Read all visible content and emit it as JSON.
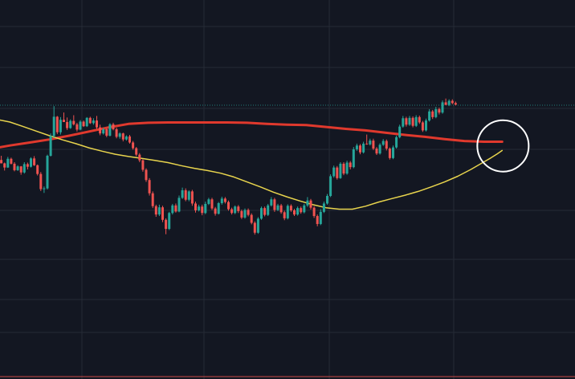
{
  "colors": {
    "background": "#131722",
    "grid": "#262b36",
    "up": "#26a69a",
    "down": "#ef5350",
    "ma_slow": "#e0392d",
    "ma_fast": "#e8d44d",
    "last_price_line": "#26a69a",
    "highlight_circle": "#ffffff"
  },
  "chart_data": {
    "type": "candlestick",
    "grid": true,
    "y_range": [
      0,
      100
    ],
    "x_count": 160,
    "last_price_value": 72.3,
    "candles": [
      [
        58.0,
        58.5,
        56.8,
        57.8
      ],
      [
        57.8,
        58.9,
        56.9,
        56.9
      ],
      [
        56.9,
        57.1,
        55.0,
        55.8
      ],
      [
        55.8,
        58.6,
        55.7,
        58.1
      ],
      [
        58.1,
        58.4,
        56.6,
        56.8
      ],
      [
        56.8,
        57.2,
        54.8,
        55.1
      ],
      [
        55.1,
        56.4,
        54.9,
        56.1
      ],
      [
        56.1,
        56.2,
        53.9,
        54.5
      ],
      [
        54.5,
        57.2,
        54.2,
        56.7
      ],
      [
        56.7,
        57.1,
        55.3,
        56.0
      ],
      [
        56.0,
        58.5,
        55.8,
        58.2
      ],
      [
        58.2,
        58.8,
        56.2,
        56.4
      ],
      [
        56.4,
        56.6,
        53.7,
        54.1
      ],
      [
        54.1,
        54.6,
        49.6,
        50.1
      ],
      [
        50.1,
        50.8,
        49.1,
        50.3
      ],
      [
        50.3,
        59.2,
        50.0,
        58.9
      ],
      [
        58.9,
        64.8,
        58.7,
        64.1
      ],
      [
        64.1,
        72.0,
        63.6,
        69.2
      ],
      [
        69.2,
        69.4,
        64.6,
        65.1
      ],
      [
        65.1,
        69.1,
        64.5,
        68.4
      ],
      [
        68.4,
        70.3,
        67.9,
        67.8
      ],
      [
        67.8,
        69.0,
        65.7,
        66.2
      ],
      [
        66.2,
        68.5,
        66.0,
        68.1
      ],
      [
        68.1,
        69.6,
        66.9,
        67.2
      ],
      [
        67.2,
        67.6,
        65.3,
        65.8
      ],
      [
        65.8,
        68.3,
        65.6,
        67.9
      ],
      [
        67.9,
        68.2,
        66.5,
        66.7
      ],
      [
        66.7,
        69.1,
        66.5,
        68.9
      ],
      [
        68.9,
        69.2,
        67.3,
        67.5
      ],
      [
        67.5,
        68.8,
        67.1,
        68.2
      ],
      [
        68.2,
        69.4,
        66.0,
        66.4
      ],
      [
        66.4,
        67.1,
        64.3,
        64.8
      ],
      [
        64.8,
        66.3,
        64.5,
        65.9
      ],
      [
        65.9,
        66.2,
        63.8,
        64.2
      ],
      [
        64.2,
        67.5,
        64.0,
        67.2
      ],
      [
        67.2,
        67.6,
        65.6,
        65.9
      ],
      [
        65.9,
        66.3,
        63.5,
        63.9
      ],
      [
        63.9,
        65.1,
        63.4,
        64.8
      ],
      [
        64.8,
        65.0,
        62.7,
        63.2
      ],
      [
        63.2,
        64.3,
        62.9,
        64.0
      ],
      [
        64.0,
        64.4,
        62.1,
        62.4
      ],
      [
        62.4,
        62.8,
        60.5,
        60.9
      ],
      [
        60.9,
        61.2,
        58.8,
        59.2
      ],
      [
        59.2,
        59.6,
        57.2,
        57.7
      ],
      [
        57.7,
        58.0,
        54.7,
        55.2
      ],
      [
        55.2,
        55.6,
        52.0,
        52.5
      ],
      [
        52.5,
        53.0,
        48.4,
        49.0
      ],
      [
        49.0,
        49.5,
        45.1,
        45.6
      ],
      [
        45.6,
        46.0,
        42.8,
        43.4
      ],
      [
        43.4,
        46.0,
        43.0,
        45.3
      ],
      [
        45.3,
        45.7,
        41.4,
        42.0
      ],
      [
        42.0,
        42.4,
        38.2,
        39.6
      ],
      [
        39.6,
        44.1,
        39.3,
        43.8
      ],
      [
        43.8,
        46.2,
        43.4,
        45.8
      ],
      [
        45.8,
        46.3,
        43.9,
        44.2
      ],
      [
        44.2,
        48.4,
        44.0,
        47.8
      ],
      [
        47.8,
        50.5,
        47.5,
        49.8
      ],
      [
        49.8,
        50.3,
        46.9,
        47.3
      ],
      [
        47.3,
        49.8,
        46.9,
        49.5
      ],
      [
        49.5,
        49.9,
        45.7,
        46.3
      ],
      [
        46.3,
        46.8,
        43.9,
        44.5
      ],
      [
        44.5,
        46.0,
        44.2,
        45.5
      ],
      [
        45.5,
        46.0,
        43.2,
        43.8
      ],
      [
        43.8,
        46.8,
        43.5,
        46.2
      ],
      [
        46.2,
        47.8,
        45.9,
        47.4
      ],
      [
        47.4,
        47.8,
        44.6,
        45.0
      ],
      [
        45.0,
        45.4,
        43.1,
        43.6
      ],
      [
        43.6,
        46.7,
        43.4,
        46.4
      ],
      [
        46.4,
        48.1,
        46.0,
        47.6
      ],
      [
        47.6,
        48.0,
        46.3,
        46.7
      ],
      [
        46.7,
        47.1,
        44.4,
        44.8
      ],
      [
        44.8,
        45.2,
        43.4,
        43.8
      ],
      [
        43.8,
        45.8,
        43.5,
        45.5
      ],
      [
        45.5,
        45.9,
        43.8,
        44.3
      ],
      [
        44.3,
        44.7,
        42.2,
        42.6
      ],
      [
        42.6,
        45.0,
        42.3,
        44.6
      ],
      [
        44.6,
        45.0,
        42.9,
        43.3
      ],
      [
        43.3,
        43.7,
        40.8,
        41.2
      ],
      [
        41.2,
        41.6,
        38.1,
        38.6
      ],
      [
        38.6,
        42.7,
        38.3,
        42.3
      ],
      [
        42.3,
        45.5,
        42.0,
        45.1
      ],
      [
        45.1,
        45.5,
        42.9,
        43.3
      ],
      [
        43.3,
        46.2,
        43.0,
        45.8
      ],
      [
        45.8,
        48.0,
        45.5,
        47.4
      ],
      [
        47.4,
        47.8,
        44.1,
        44.6
      ],
      [
        44.6,
        46.2,
        44.3,
        45.8
      ],
      [
        45.8,
        46.2,
        43.6,
        44.0
      ],
      [
        44.0,
        44.4,
        41.9,
        42.4
      ],
      [
        42.4,
        46.1,
        42.1,
        45.7
      ],
      [
        45.7,
        46.1,
        44.1,
        44.5
      ],
      [
        44.5,
        44.9,
        43.0,
        43.4
      ],
      [
        43.4,
        45.5,
        43.1,
        45.1
      ],
      [
        45.1,
        45.5,
        43.6,
        44.0
      ],
      [
        44.0,
        46.2,
        43.7,
        45.8
      ],
      [
        45.8,
        48.0,
        45.4,
        47.1
      ],
      [
        47.1,
        47.5,
        44.7,
        45.2
      ],
      [
        45.2,
        45.6,
        42.5,
        43.0
      ],
      [
        43.0,
        43.4,
        40.3,
        40.9
      ],
      [
        40.9,
        44.8,
        40.6,
        44.1
      ],
      [
        44.1,
        46.8,
        43.8,
        46.3
      ],
      [
        46.3,
        48.8,
        46.0,
        48.3
      ],
      [
        48.3,
        54.0,
        48.0,
        53.5
      ],
      [
        53.5,
        56.3,
        53.1,
        55.8
      ],
      [
        55.8,
        56.2,
        52.6,
        53.0
      ],
      [
        53.0,
        57.2,
        52.8,
        56.8
      ],
      [
        56.8,
        57.2,
        53.8,
        54.2
      ],
      [
        54.2,
        57.6,
        53.9,
        57.1
      ],
      [
        57.1,
        57.5,
        55.3,
        55.9
      ],
      [
        55.9,
        61.2,
        55.6,
        60.6
      ],
      [
        60.6,
        62.1,
        60.2,
        61.6
      ],
      [
        61.6,
        62.0,
        59.3,
        59.8
      ],
      [
        59.8,
        62.6,
        59.5,
        62.1
      ],
      [
        62.1,
        64.5,
        61.8,
        61.9
      ],
      [
        61.9,
        63.4,
        61.6,
        62.9
      ],
      [
        62.9,
        63.4,
        60.4,
        60.8
      ],
      [
        60.8,
        61.2,
        59.1,
        59.5
      ],
      [
        59.5,
        62.2,
        59.2,
        61.8
      ],
      [
        61.8,
        63.3,
        61.5,
        62.8
      ],
      [
        62.8,
        63.2,
        60.3,
        60.8
      ],
      [
        60.8,
        61.1,
        57.9,
        58.3
      ],
      [
        58.3,
        61.6,
        58.0,
        61.1
      ],
      [
        61.1,
        64.2,
        60.8,
        63.8
      ],
      [
        63.8,
        67.1,
        63.5,
        66.6
      ],
      [
        66.6,
        69.4,
        66.3,
        68.8
      ],
      [
        68.8,
        69.2,
        66.6,
        67.1
      ],
      [
        67.1,
        69.4,
        66.8,
        68.9
      ],
      [
        68.9,
        69.3,
        66.4,
        66.8
      ],
      [
        66.8,
        69.6,
        66.5,
        69.1
      ],
      [
        69.1,
        69.5,
        67.3,
        67.7
      ],
      [
        67.7,
        68.1,
        65.2,
        65.6
      ],
      [
        65.6,
        68.7,
        65.3,
        68.2
      ],
      [
        68.2,
        71.2,
        67.9,
        70.6
      ],
      [
        70.6,
        71.0,
        68.6,
        69.1
      ],
      [
        69.1,
        71.8,
        68.8,
        71.2
      ],
      [
        71.2,
        71.6,
        69.8,
        70.3
      ],
      [
        70.3,
        73.5,
        70.0,
        73.0
      ],
      [
        73.0,
        74.0,
        72.7,
        72.3
      ],
      [
        72.3,
        73.8,
        72.0,
        73.4
      ],
      [
        73.4,
        73.8,
        72.5,
        72.8
      ],
      [
        72.8,
        73.2,
        72.2,
        72.4
      ]
    ],
    "ma_slow": [
      [
        0,
        61.0
      ],
      [
        4,
        61.6
      ],
      [
        10,
        62.4
      ],
      [
        16,
        63.2
      ],
      [
        22,
        64.2
      ],
      [
        28,
        65.3
      ],
      [
        34,
        66.4
      ],
      [
        40,
        67.3
      ],
      [
        46,
        67.6
      ],
      [
        52,
        67.7
      ],
      [
        58,
        67.7
      ],
      [
        64,
        67.7
      ],
      [
        70,
        67.7
      ],
      [
        76,
        67.6
      ],
      [
        82,
        67.3
      ],
      [
        88,
        67.1
      ],
      [
        94,
        67.0
      ],
      [
        100,
        66.5
      ],
      [
        106,
        66.0
      ],
      [
        112,
        65.6
      ],
      [
        118,
        65.0
      ],
      [
        124,
        64.4
      ],
      [
        130,
        63.9
      ],
      [
        136,
        63.3
      ],
      [
        142,
        62.8
      ],
      [
        148,
        62.6
      ],
      [
        152,
        62.6
      ],
      [
        153.5,
        62.6
      ]
    ],
    "ma_fast": [
      [
        0,
        68.5
      ],
      [
        4,
        67.8
      ],
      [
        8,
        66.6
      ],
      [
        12,
        65.4
      ],
      [
        16,
        64.2
      ],
      [
        20,
        63.1
      ],
      [
        24,
        62.1
      ],
      [
        28,
        61.0
      ],
      [
        32,
        60.1
      ],
      [
        36,
        59.3
      ],
      [
        40,
        58.7
      ],
      [
        44,
        58.2
      ],
      [
        48,
        57.7
      ],
      [
        52,
        57.1
      ],
      [
        56,
        56.3
      ],
      [
        60,
        55.6
      ],
      [
        64,
        55.0
      ],
      [
        68,
        54.3
      ],
      [
        72,
        53.3
      ],
      [
        76,
        52.0
      ],
      [
        80,
        50.7
      ],
      [
        84,
        49.3
      ],
      [
        88,
        48.1
      ],
      [
        92,
        47.0
      ],
      [
        96,
        46.0
      ],
      [
        100,
        45.2
      ],
      [
        104,
        44.8
      ],
      [
        108,
        44.8
      ],
      [
        112,
        45.6
      ],
      [
        116,
        46.7
      ],
      [
        120,
        47.6
      ],
      [
        124,
        48.5
      ],
      [
        128,
        49.5
      ],
      [
        132,
        50.7
      ],
      [
        136,
        52.0
      ],
      [
        140,
        53.5
      ],
      [
        144,
        55.3
      ],
      [
        148,
        57.3
      ],
      [
        150,
        58.3
      ],
      [
        152,
        59.4
      ],
      [
        153.5,
        60.3
      ]
    ],
    "highlight_circle_at": [
      153.5,
      61.5
    ]
  }
}
